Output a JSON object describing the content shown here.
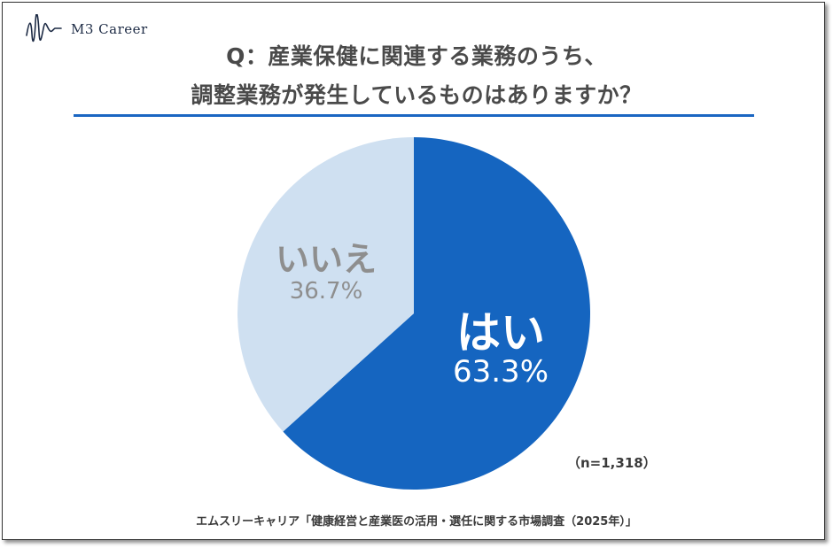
{
  "brand": {
    "name": "M3 Career",
    "logo_icon": "wave-signature-icon"
  },
  "title_lines": [
    "Q：産業保健に関連する業務のうち、",
    "調整業務が発生しているものはありますか？"
  ],
  "sample_note": "（n=1,318）",
  "source": "エムスリーキャリア「健康経営と産業医の活用・選任に関する市場調査（2025年）」",
  "colors": {
    "accent": "#1a66c2",
    "yes": "#1565c0",
    "no": "#cfe0f1",
    "no_text": "#8e8e8e"
  },
  "chart_data": {
    "type": "pie",
    "slices": [
      {
        "label": "はい",
        "value": 63.3,
        "value_label": "63.3%",
        "color": "#1565c0"
      },
      {
        "label": "いいえ",
        "value": 36.7,
        "value_label": "36.7%",
        "color": "#cfe0f1"
      }
    ],
    "start_angle_deg": 0,
    "direction": "clockwise",
    "legend": "none"
  }
}
